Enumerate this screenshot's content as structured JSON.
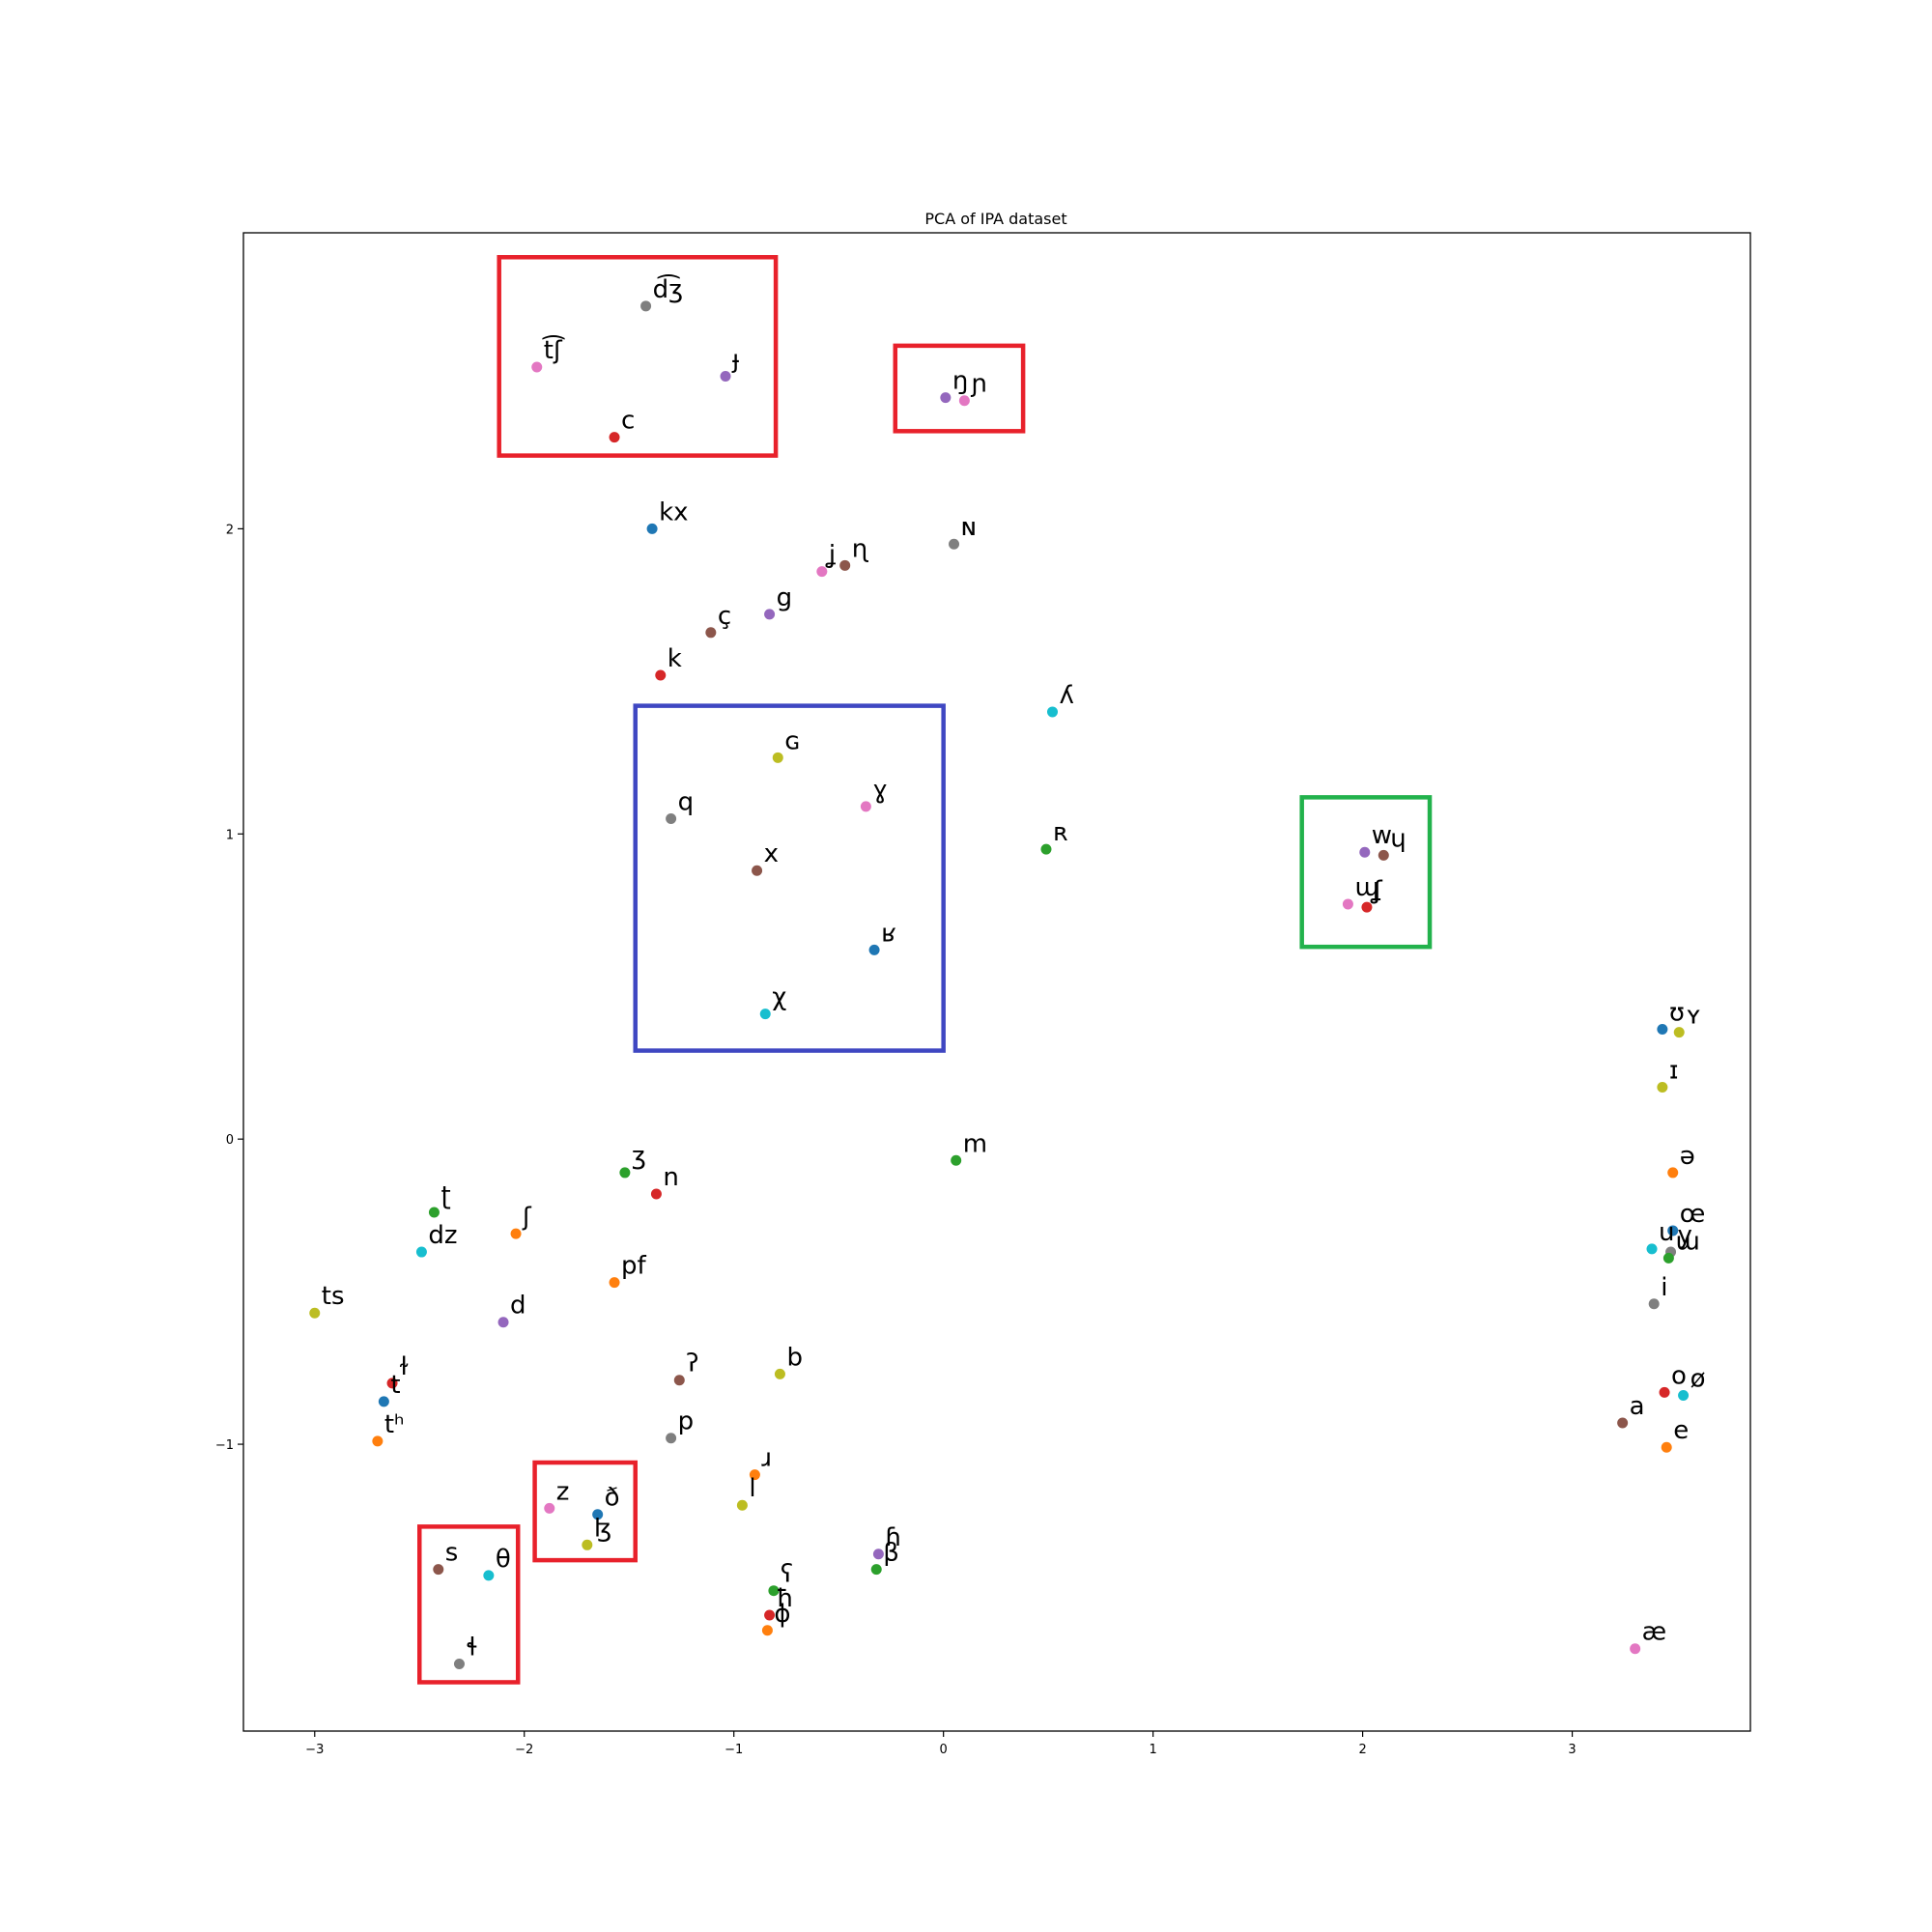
{
  "chart_data": {
    "type": "scatter",
    "title": "PCA of IPA dataset",
    "xlabel": "",
    "ylabel": "",
    "xlim": [
      -3.34,
      3.85
    ],
    "ylim": [
      -1.94,
      2.97
    ],
    "x_ticks": [
      {
        "v": -3,
        "label": "−3"
      },
      {
        "v": -2,
        "label": "−2"
      },
      {
        "v": -1,
        "label": "−1"
      },
      {
        "v": 0,
        "label": "0"
      },
      {
        "v": 1,
        "label": "1"
      },
      {
        "v": 2,
        "label": "2"
      },
      {
        "v": 3,
        "label": "3"
      }
    ],
    "y_ticks": [
      {
        "v": -1,
        "label": "−1"
      },
      {
        "v": 0,
        "label": "0"
      },
      {
        "v": 1,
        "label": "1"
      },
      {
        "v": 2,
        "label": "2"
      }
    ],
    "grid": false,
    "legend": "none",
    "points": [
      {
        "label": "d͡ʒ",
        "x": -1.42,
        "y": 2.73,
        "color": "#7f7f7f"
      },
      {
        "label": "t͡ʃ",
        "x": -1.94,
        "y": 2.53,
        "color": "#e377c2"
      },
      {
        "label": "ɟ",
        "x": -1.04,
        "y": 2.5,
        "color": "#9467bd"
      },
      {
        "label": "c",
        "x": -1.57,
        "y": 2.3,
        "color": "#d62728"
      },
      {
        "label": "ŋ",
        "x": 0.01,
        "y": 2.43,
        "color": "#9467bd"
      },
      {
        "label": "ɲ",
        "x": 0.1,
        "y": 2.42,
        "color": "#e377c2"
      },
      {
        "label": "kx",
        "x": -1.39,
        "y": 2.0,
        "color": "#1f77b4"
      },
      {
        "label": "ɴ",
        "x": 0.05,
        "y": 1.95,
        "color": "#7f7f7f"
      },
      {
        "label": "ʝ",
        "x": -0.58,
        "y": 1.86,
        "color": "#e377c2"
      },
      {
        "label": "ɳ",
        "x": -0.47,
        "y": 1.88,
        "color": "#8c564b"
      },
      {
        "label": "g",
        "x": -0.83,
        "y": 1.72,
        "color": "#9467bd"
      },
      {
        "label": "ç",
        "x": -1.11,
        "y": 1.66,
        "color": "#8c564b"
      },
      {
        "label": "k",
        "x": -1.35,
        "y": 1.52,
        "color": "#d62728"
      },
      {
        "label": "ʎ",
        "x": 0.52,
        "y": 1.4,
        "color": "#17becf"
      },
      {
        "label": "ɢ",
        "x": -0.79,
        "y": 1.25,
        "color": "#bcbd22"
      },
      {
        "label": "ɣ",
        "x": -0.37,
        "y": 1.09,
        "color": "#e377c2"
      },
      {
        "label": "q",
        "x": -1.3,
        "y": 1.05,
        "color": "#7f7f7f"
      },
      {
        "label": "ʀ",
        "x": 0.49,
        "y": 0.95,
        "color": "#2ca02c"
      },
      {
        "label": "x",
        "x": -0.89,
        "y": 0.88,
        "color": "#8c564b"
      },
      {
        "label": "ʁ",
        "x": -0.33,
        "y": 0.62,
        "color": "#1f77b4"
      },
      {
        "label": "χ",
        "x": -0.85,
        "y": 0.41,
        "color": "#17becf"
      },
      {
        "label": "w",
        "x": 2.01,
        "y": 0.94,
        "color": "#9467bd"
      },
      {
        "label": "ɥ",
        "x": 2.1,
        "y": 0.93,
        "color": "#8c564b"
      },
      {
        "label": "ɰ",
        "x": 1.93,
        "y": 0.77,
        "color": "#e377c2"
      },
      {
        "label": "ʆ",
        "x": 2.02,
        "y": 0.76,
        "color": "#d62728"
      },
      {
        "label": "ʊ",
        "x": 3.43,
        "y": 0.36,
        "color": "#1f77b4"
      },
      {
        "label": "ʏ",
        "x": 3.51,
        "y": 0.35,
        "color": "#bcbd22"
      },
      {
        "label": "ɪ",
        "x": 3.43,
        "y": 0.17,
        "color": "#bcbd22"
      },
      {
        "label": "ə",
        "x": 3.48,
        "y": -0.11,
        "color": "#ff7f0e"
      },
      {
        "label": "œ",
        "x": 3.48,
        "y": -0.3,
        "color": "#1f77b4"
      },
      {
        "label": "u",
        "x": 3.38,
        "y": -0.36,
        "color": "#17becf"
      },
      {
        "label": "y",
        "x": 3.47,
        "y": -0.37,
        "color": "#7f7f7f"
      },
      {
        "label": "ɯ",
        "x": 3.46,
        "y": -0.39,
        "color": "#2ca02c"
      },
      {
        "label": "i",
        "x": 3.39,
        "y": -0.54,
        "color": "#7f7f7f"
      },
      {
        "label": "o",
        "x": 3.44,
        "y": -0.83,
        "color": "#d62728"
      },
      {
        "label": "ø",
        "x": 3.53,
        "y": -0.84,
        "color": "#17becf"
      },
      {
        "label": "a",
        "x": 3.24,
        "y": -0.93,
        "color": "#8c564b"
      },
      {
        "label": "e",
        "x": 3.45,
        "y": -1.01,
        "color": "#ff7f0e"
      },
      {
        "label": "æ",
        "x": 3.3,
        "y": -1.67,
        "color": "#e377c2"
      },
      {
        "label": "ʒ",
        "x": -1.52,
        "y": -0.11,
        "color": "#2ca02c"
      },
      {
        "label": "n",
        "x": -1.37,
        "y": -0.18,
        "color": "#d62728"
      },
      {
        "label": "m",
        "x": 0.06,
        "y": -0.07,
        "color": "#2ca02c"
      },
      {
        "label": "ʈ",
        "x": -2.43,
        "y": -0.24,
        "color": "#2ca02c"
      },
      {
        "label": "ʃ",
        "x": -2.04,
        "y": -0.31,
        "color": "#ff7f0e"
      },
      {
        "label": "dz",
        "x": -2.49,
        "y": -0.37,
        "color": "#17becf"
      },
      {
        "label": "pf",
        "x": -1.57,
        "y": -0.47,
        "color": "#ff7f0e"
      },
      {
        "label": "ts",
        "x": -3.0,
        "y": -0.57,
        "color": "#bcbd22"
      },
      {
        "label": "d",
        "x": -2.1,
        "y": -0.6,
        "color": "#9467bd"
      },
      {
        "label": "ʔ",
        "x": -1.26,
        "y": -0.79,
        "color": "#8c564b"
      },
      {
        "label": "b",
        "x": -0.78,
        "y": -0.77,
        "color": "#bcbd22"
      },
      {
        "label": "ɫ",
        "x": -2.63,
        "y": -0.8,
        "color": "#d62728"
      },
      {
        "label": "t",
        "x": -2.67,
        "y": -0.86,
        "color": "#1f77b4"
      },
      {
        "label": "tʰ",
        "x": -2.7,
        "y": -0.99,
        "color": "#ff7f0e"
      },
      {
        "label": "p",
        "x": -1.3,
        "y": -0.98,
        "color": "#7f7f7f"
      },
      {
        "label": "ɹ",
        "x": -0.9,
        "y": -1.1,
        "color": "#ff7f0e"
      },
      {
        "label": "l",
        "x": -0.96,
        "y": -1.2,
        "color": "#bcbd22"
      },
      {
        "label": "z",
        "x": -1.88,
        "y": -1.21,
        "color": "#e377c2"
      },
      {
        "label": "ð",
        "x": -1.65,
        "y": -1.23,
        "color": "#1f77b4"
      },
      {
        "label": "ɮ",
        "x": -1.7,
        "y": -1.33,
        "color": "#bcbd22"
      },
      {
        "label": "ɦ",
        "x": -0.31,
        "y": -1.36,
        "color": "#9467bd"
      },
      {
        "label": "β",
        "x": -0.32,
        "y": -1.41,
        "color": "#2ca02c"
      },
      {
        "label": "s",
        "x": -2.41,
        "y": -1.41,
        "color": "#8c564b"
      },
      {
        "label": "θ",
        "x": -2.17,
        "y": -1.43,
        "color": "#17becf"
      },
      {
        "label": "ʕ",
        "x": -0.81,
        "y": -1.48,
        "color": "#2ca02c"
      },
      {
        "label": "ħ",
        "x": -0.83,
        "y": -1.56,
        "color": "#d62728"
      },
      {
        "label": "ɸ",
        "x": -0.84,
        "y": -1.61,
        "color": "#ff7f0e"
      },
      {
        "label": "ɬ",
        "x": -2.31,
        "y": -1.72,
        "color": "#7f7f7f"
      }
    ],
    "highlight_boxes": [
      {
        "x0": -2.12,
        "x1": -0.8,
        "y0": 2.24,
        "y1": 2.89,
        "color": "#e8212b"
      },
      {
        "x0": -0.23,
        "x1": 0.38,
        "y0": 2.32,
        "y1": 2.6,
        "color": "#e8212b"
      },
      {
        "x0": -1.47,
        "x1": 0.0,
        "y0": 0.29,
        "y1": 1.42,
        "color": "#3f47c2"
      },
      {
        "x0": 1.71,
        "x1": 2.32,
        "y0": 0.63,
        "y1": 1.12,
        "color": "#22b24c"
      },
      {
        "x0": -1.95,
        "x1": -1.47,
        "y0": -1.38,
        "y1": -1.06,
        "color": "#e8212b"
      },
      {
        "x0": -2.5,
        "x1": -2.03,
        "y0": -1.78,
        "y1": -1.27,
        "color": "#e8212b"
      }
    ]
  }
}
